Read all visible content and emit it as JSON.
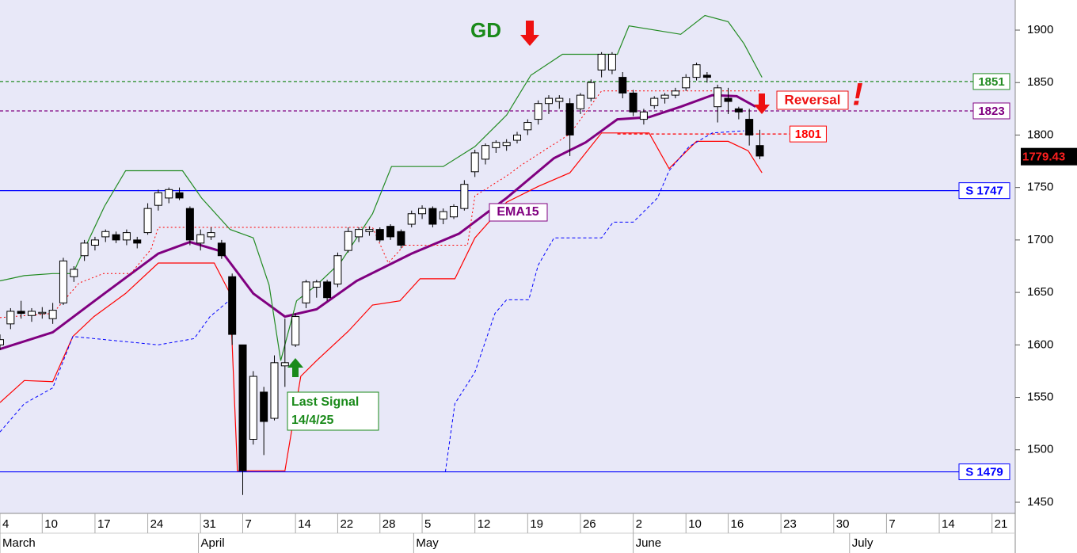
{
  "chart_data": {
    "type": "candlestick",
    "xlim": [
      0,
      96.2
    ],
    "ylim": [
      1439.4,
      1928.7
    ],
    "yticks": [
      1450,
      1500,
      1550,
      1600,
      1650,
      1700,
      1750,
      1800,
      1850,
      1900
    ],
    "xticks": [
      {
        "value": 0,
        "label": "4"
      },
      {
        "value": 4,
        "label": "10"
      },
      {
        "value": 9,
        "label": "17"
      },
      {
        "value": 14,
        "label": "24"
      },
      {
        "value": 19,
        "label": "31"
      },
      {
        "value": 23,
        "label": "7"
      },
      {
        "value": 28,
        "label": "14"
      },
      {
        "value": 32,
        "label": "22"
      },
      {
        "value": 36,
        "label": "28"
      },
      {
        "value": 40,
        "label": "5"
      },
      {
        "value": 45,
        "label": "12"
      },
      {
        "value": 50,
        "label": "19"
      },
      {
        "value": 55,
        "label": "26"
      },
      {
        "value": 60,
        "label": "2"
      },
      {
        "value": 65,
        "label": "10"
      },
      {
        "value": 69,
        "label": "16"
      },
      {
        "value": 74,
        "label": "23"
      },
      {
        "value": 79,
        "label": "30"
      },
      {
        "value": 84,
        "label": "7"
      },
      {
        "value": 89,
        "label": "14"
      },
      {
        "value": 94,
        "label": "21"
      }
    ],
    "months": [
      {
        "value": 0,
        "label": "March"
      },
      {
        "value": 18.8,
        "label": "April"
      },
      {
        "value": 39.2,
        "label": "May"
      },
      {
        "value": 60,
        "label": "June"
      },
      {
        "value": 80.5,
        "label": "July"
      }
    ],
    "candles": {
      "x": [
        0,
        1,
        2,
        3,
        4,
        5,
        6,
        7,
        8,
        9,
        10,
        11,
        12,
        13,
        14,
        15,
        16,
        17,
        18,
        19,
        20,
        21,
        22,
        23,
        24,
        25,
        26,
        27,
        28,
        29,
        30,
        31,
        32,
        33,
        34,
        35,
        36,
        37,
        38,
        39,
        40,
        41,
        42,
        43,
        44,
        45,
        46,
        47,
        48,
        49,
        50,
        51,
        52,
        53,
        54,
        55,
        56,
        57,
        58,
        59,
        60,
        61,
        62,
        63,
        64,
        65,
        66,
        67,
        68,
        69,
        70,
        71,
        72
      ],
      "open": [
        1600,
        1620,
        1632,
        1628,
        1630,
        1625,
        1640,
        1665,
        1685,
        1695,
        1703,
        1705,
        1700,
        1700,
        1707,
        1733,
        1740,
        1745,
        1730,
        1697,
        1703,
        1697,
        1665,
        1600,
        1510,
        1555,
        1530,
        1580,
        1600,
        1640,
        1655,
        1660,
        1658,
        1690,
        1703,
        1708,
        1710,
        1713,
        1708,
        1715,
        1725,
        1730,
        1720,
        1722,
        1730,
        1765,
        1777,
        1788,
        1790,
        1795,
        1805,
        1815,
        1830,
        1832,
        1830,
        1825,
        1835,
        1862,
        1862,
        1855,
        1840,
        1815,
        1828,
        1835,
        1838,
        1845,
        1855,
        1857,
        1827,
        1835,
        1825,
        1815,
        1790
      ],
      "high": [
        1610,
        1635,
        1642,
        1635,
        1636,
        1640,
        1683,
        1675,
        1700,
        1703,
        1710,
        1708,
        1710,
        1703,
        1735,
        1748,
        1750,
        1750,
        1732,
        1710,
        1712,
        1700,
        1668,
        1600,
        1575,
        1560,
        1590,
        1625,
        1630,
        1662,
        1662,
        1662,
        1688,
        1712,
        1712,
        1713,
        1712,
        1715,
        1710,
        1728,
        1733,
        1732,
        1730,
        1734,
        1757,
        1786,
        1792,
        1795,
        1796,
        1803,
        1815,
        1833,
        1838,
        1838,
        1835,
        1840,
        1853,
        1879,
        1879,
        1860,
        1843,
        1825,
        1837,
        1840,
        1845,
        1858,
        1869,
        1860,
        1848,
        1845,
        1827,
        1825,
        1805
      ],
      "low": [
        1595,
        1615,
        1625,
        1622,
        1625,
        1620,
        1638,
        1660,
        1680,
        1690,
        1698,
        1697,
        1695,
        1692,
        1705,
        1728,
        1735,
        1738,
        1695,
        1690,
        1700,
        1682,
        1600,
        1457,
        1505,
        1495,
        1528,
        1560,
        1598,
        1635,
        1645,
        1642,
        1655,
        1688,
        1698,
        1704,
        1698,
        1700,
        1692,
        1712,
        1720,
        1712,
        1715,
        1720,
        1728,
        1760,
        1772,
        1783,
        1785,
        1792,
        1800,
        1810,
        1820,
        1825,
        1780,
        1820,
        1832,
        1855,
        1858,
        1835,
        1818,
        1810,
        1825,
        1830,
        1835,
        1842,
        1852,
        1850,
        1812,
        1820,
        1815,
        1790,
        1777
      ],
      "close": [
        1605,
        1632,
        1630,
        1632,
        1631,
        1633,
        1680,
        1672,
        1697,
        1700,
        1708,
        1700,
        1707,
        1697,
        1730,
        1745,
        1748,
        1740,
        1700,
        1705,
        1707,
        1685,
        1610,
        1480,
        1570,
        1527,
        1583,
        1583,
        1627,
        1660,
        1660,
        1645,
        1685,
        1708,
        1710,
        1710,
        1700,
        1703,
        1695,
        1725,
        1730,
        1715,
        1727,
        1732,
        1753,
        1783,
        1790,
        1793,
        1793,
        1800,
        1812,
        1830,
        1835,
        1835,
        1800,
        1838,
        1850,
        1877,
        1877,
        1840,
        1822,
        1822,
        1835,
        1838,
        1842,
        1855,
        1867,
        1855,
        1845,
        1832,
        1822,
        1800,
        1780
      ]
    },
    "lines": [
      {
        "name": "EMA15",
        "color": "#800080",
        "style": "solid",
        "width": 3,
        "x": [
          0,
          5,
          9.9,
          15,
          18,
          21,
          24,
          27,
          30,
          33.8,
          39,
          43.5,
          48,
          52.5,
          55.5,
          58.5,
          61.5,
          64.5,
          67.5,
          69.8,
          71.6
        ],
        "values": [
          1596,
          1612,
          1649,
          1687,
          1698,
          1689,
          1649,
          1627,
          1634,
          1661,
          1687,
          1706,
          1740,
          1778,
          1793,
          1815,
          1817,
          1827,
          1838,
          1837,
          1827
        ]
      },
      {
        "color": "#228b22",
        "style": "solid",
        "width": 1.2,
        "x": [
          0,
          2.3,
          5,
          6.9,
          9.9,
          11.9,
          17.3,
          19.1,
          21.8,
          24,
          25.5,
          26.6,
          28.1,
          30,
          32.3,
          35.3,
          37.1,
          42,
          45,
          48,
          50.3,
          53.3,
          58.5,
          59.6,
          64.5,
          66.8,
          69,
          70.5,
          72.2
        ],
        "values": [
          1661,
          1666,
          1668,
          1668,
          1732,
          1766,
          1766,
          1740,
          1710,
          1702,
          1657,
          1585,
          1642,
          1657,
          1679,
          1725,
          1770,
          1770,
          1789,
          1819,
          1857,
          1877,
          1877,
          1904,
          1896,
          1914,
          1908,
          1887,
          1855
        ]
      },
      {
        "color": "#ff0000",
        "style": "solid",
        "width": 1.2,
        "x": [
          0,
          2.3,
          5,
          6.9,
          8.9,
          11.9,
          15,
          20.3,
          21.8,
          22.5,
          27,
          28.5,
          30,
          33,
          35.3,
          37.9,
          39.8,
          43.1,
          45,
          48,
          51,
          54,
          57,
          61.5,
          63.4,
          66,
          69,
          70.9,
          72.2
        ],
        "values": [
          1545,
          1566,
          1565,
          1608,
          1627,
          1649,
          1678,
          1678,
          1649,
          1480,
          1480,
          1570,
          1585,
          1613,
          1638,
          1642,
          1663,
          1663,
          1702,
          1736,
          1751,
          1764,
          1802,
          1802,
          1768,
          1794,
          1794,
          1785,
          1764
        ]
      },
      {
        "color": "#0000ff",
        "style": "dashed",
        "width": 1,
        "x": [
          0,
          2.3,
          5,
          6.9,
          15,
          18.4,
          19.9,
          21.8,
          null,
          42.2,
          43.1,
          45,
          46.9,
          48,
          50.1,
          51,
          52.5,
          57,
          58.1,
          60,
          62.3,
          63.4,
          65.3,
          67.5,
          70.5
        ],
        "values": [
          1517,
          1544,
          1559,
          1608,
          1600,
          1606,
          1627,
          1643,
          null,
          1479,
          1544,
          1574,
          1630,
          1643,
          1643,
          1676,
          1702,
          1702,
          1717,
          1717,
          1740,
          1766,
          1789,
          1802,
          1804
        ]
      },
      {
        "color": "#ff0000",
        "style": "dotted",
        "width": 1,
        "x": [
          0,
          5,
          7.5,
          9.8,
          12.4,
          14.3,
          15,
          35.3,
          36.8,
          38.3,
          44.3,
          45,
          48,
          49.5,
          54,
          57,
          72.2
        ],
        "values": [
          1626,
          1630,
          1659,
          1668,
          1668,
          1691,
          1712,
          1712,
          1678,
          1695,
          1695,
          1742,
          1761,
          1772,
          1801,
          1842,
          1842
        ]
      }
    ],
    "levels": [
      {
        "value": 1851,
        "label": "1851",
        "color": "#228b22",
        "style": "dashed"
      },
      {
        "value": 1823,
        "label": "1823",
        "color": "#800080",
        "style": "dashed"
      },
      {
        "value": 1801,
        "label": "1801",
        "color": "#ff0000",
        "style": "dashed",
        "start": 58.5,
        "end": 78.3
      },
      {
        "value": 1747,
        "label": "S 1747",
        "color": "#0000ff",
        "style": "solid"
      },
      {
        "value": 1479,
        "label": "S 1479",
        "color": "#0000ff",
        "style": "solid"
      }
    ],
    "last_price": {
      "value": 1779.43,
      "label": "1779.43"
    },
    "annotations": {
      "gd": "GD",
      "reversal": "Reversal",
      "exclaim": "!",
      "ema": "EMA15",
      "signal": [
        "Last Signal",
        "14/4/25"
      ]
    }
  }
}
